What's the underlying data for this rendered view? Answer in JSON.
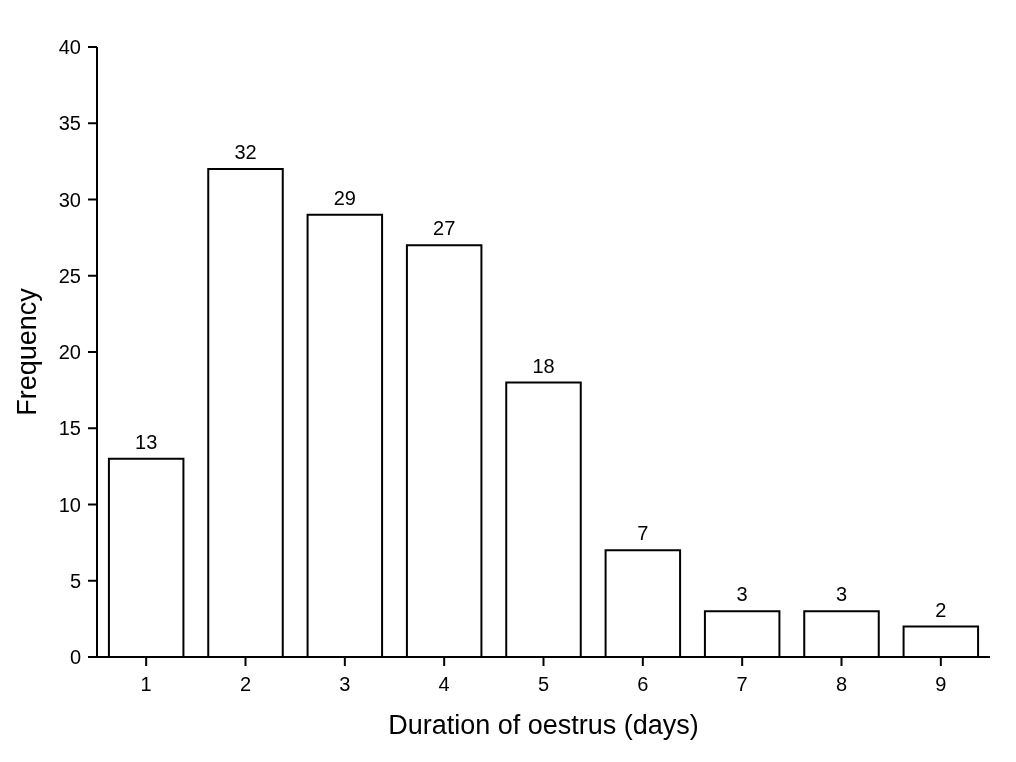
{
  "chart_data": {
    "type": "bar",
    "xlabel": "Duration of oestrus (days)",
    "ylabel": "Frequency",
    "categories": [
      "1",
      "2",
      "3",
      "4",
      "5",
      "6",
      "7",
      "8",
      "9"
    ],
    "values": [
      13,
      32,
      29,
      27,
      18,
      7,
      3,
      3,
      2
    ],
    "color": "#ffffff",
    "ylim": [
      0,
      40
    ],
    "yticks": [
      0,
      5,
      10,
      15,
      20,
      25,
      30,
      35,
      40
    ],
    "data_labels": true
  }
}
